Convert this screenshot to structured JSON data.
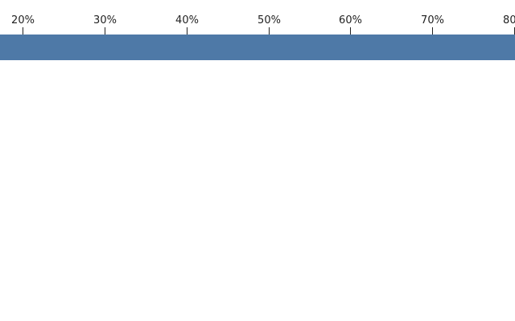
{
  "chart_data": {
    "type": "bar",
    "orientation": "horizontal",
    "x_tick_labels": [
      "20%",
      "30%",
      "40%",
      "50%",
      "60%",
      "70%",
      "80%"
    ],
    "x_ticks": [
      20,
      30,
      40,
      50,
      60,
      70,
      80
    ],
    "x_axis_position": "top",
    "xlim": [
      17.2,
      80.1
    ],
    "series": [
      {
        "values": [
          80.1
        ]
      }
    ],
    "bar_color": "#4e79a7",
    "grid": false,
    "legend": "none"
  }
}
